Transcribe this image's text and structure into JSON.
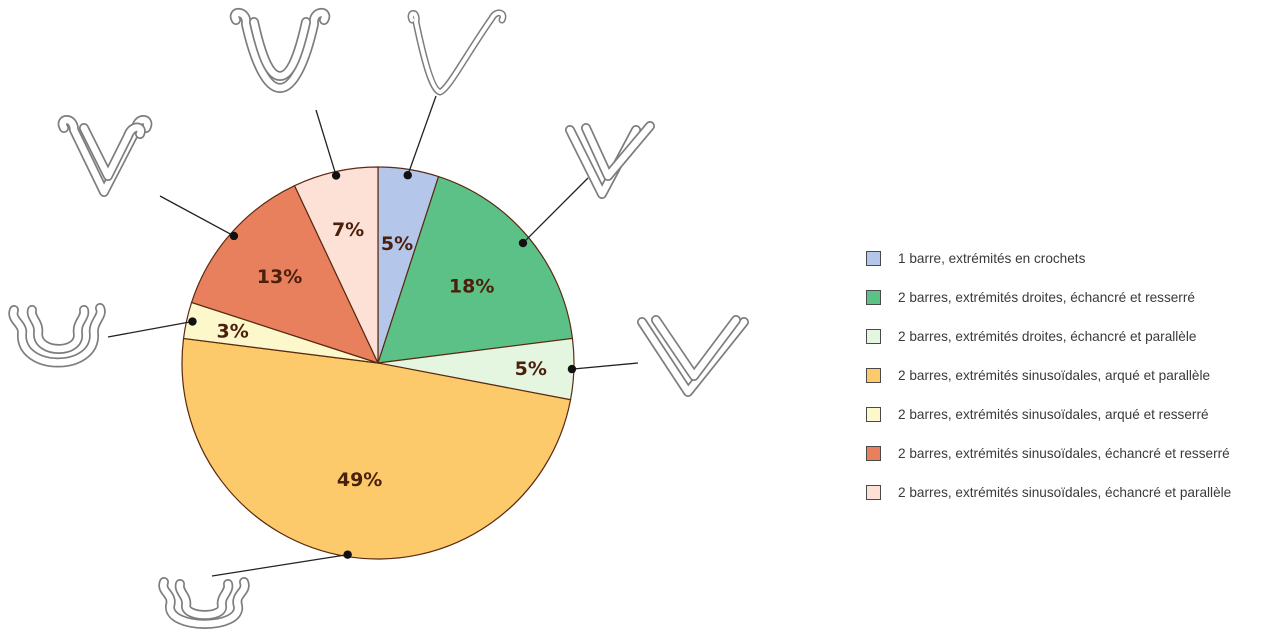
{
  "chart_data": {
    "type": "pie",
    "start_angle_deg": 0,
    "direction": "clockwise",
    "slices": [
      {
        "label": "1 barre, extrémités en crochets",
        "value": 5,
        "value_label": "5%",
        "color": "#b4c6ea"
      },
      {
        "label": "2 barres, extrémités droites, échancré et resserré",
        "value": 18,
        "value_label": "18%",
        "color": "#5cc187"
      },
      {
        "label": "2 barres, extrémités droites, échancré et parallèle",
        "value": 5,
        "value_label": "5%",
        "color": "#e4f5e0"
      },
      {
        "label": "2 barres, extrémités sinusoïdales, arqué et parallèle",
        "value": 49,
        "value_label": "49%",
        "color": "#fcca6a"
      },
      {
        "label": "2 barres, extrémités sinusoïdales, arqué et resserré",
        "value": 3,
        "value_label": "3%",
        "color": "#fdf7cc"
      },
      {
        "label": "2 barres, extrémités sinusoïdales, échancré et resserré",
        "value": 13,
        "value_label": "13%",
        "color": "#e9805d"
      },
      {
        "label": "2 barres, extrémités sinusoïdales, échancré et parallèle",
        "value": 7,
        "value_label": "7%",
        "color": "#fde1d6"
      }
    ],
    "legend_position": "right"
  }
}
